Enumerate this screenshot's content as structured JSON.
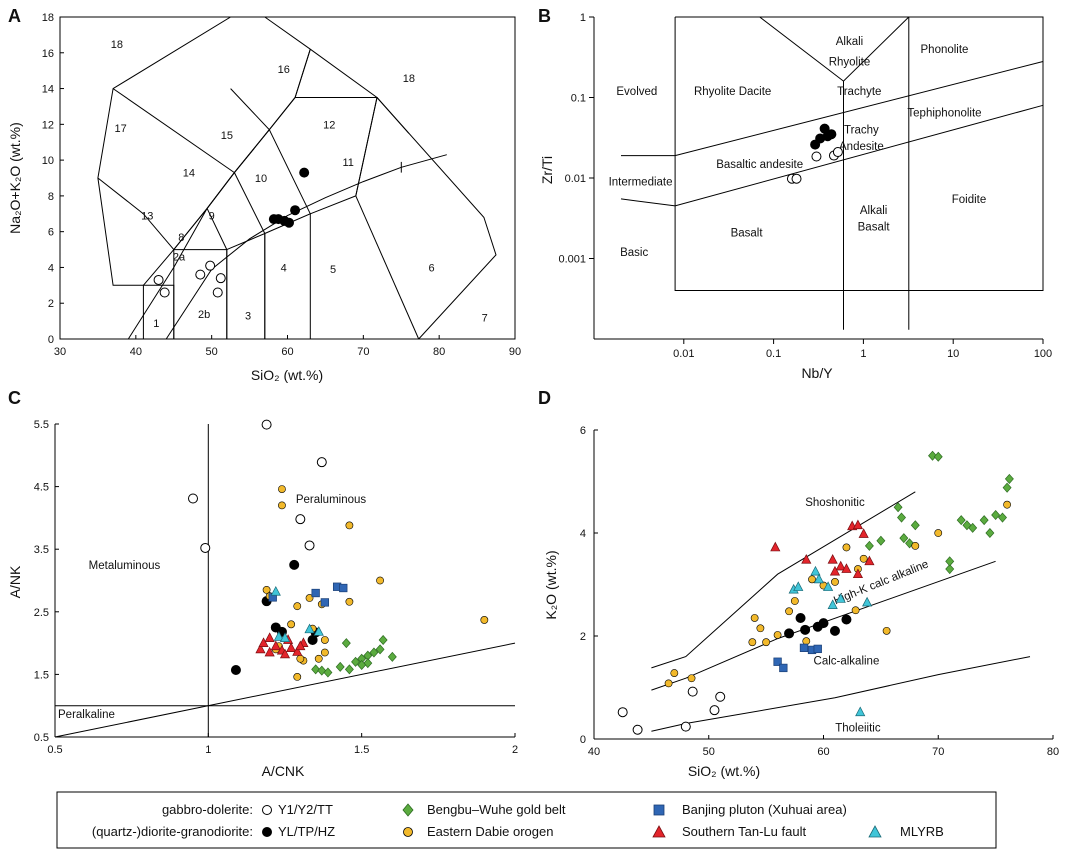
{
  "chart_data": [
    {
      "panel": "A",
      "type": "scatter",
      "xlabel": "SiO₂ (wt.%)",
      "ylabel": "Na₂O+K₂O  (wt.%)",
      "xlim": [
        30,
        90
      ],
      "ylim": [
        0,
        18
      ],
      "xticks": [
        "30",
        "40",
        "50",
        "60",
        "70",
        "80",
        "90"
      ],
      "yticks": [
        "0",
        "2",
        "4",
        "6",
        "8",
        "10",
        "12",
        "14",
        "16",
        "18"
      ],
      "field_labels": [
        {
          "text": "18",
          "x": 37.5,
          "y": 16.5
        },
        {
          "text": "17",
          "x": 38,
          "y": 11.8
        },
        {
          "text": "16",
          "x": 59.5,
          "y": 15.1
        },
        {
          "text": "18",
          "x": 76,
          "y": 14.6
        },
        {
          "text": "15",
          "x": 52,
          "y": 11.4
        },
        {
          "text": "12",
          "x": 65.5,
          "y": 12.0
        },
        {
          "text": "14",
          "x": 47,
          "y": 9.3
        },
        {
          "text": "10",
          "x": 56.5,
          "y": 9.0
        },
        {
          "text": "11",
          "x": 68,
          "y": 9.9
        },
        {
          "text": "13",
          "x": 41.5,
          "y": 6.9
        },
        {
          "text": "9",
          "x": 50,
          "y": 6.9
        },
        {
          "text": "8",
          "x": 46,
          "y": 5.7
        },
        {
          "text": "2a",
          "x": 45.7,
          "y": 4.6
        },
        {
          "text": "4",
          "x": 59.5,
          "y": 4.0
        },
        {
          "text": "5",
          "x": 66,
          "y": 3.9
        },
        {
          "text": "6",
          "x": 79,
          "y": 4.0
        },
        {
          "text": "1",
          "x": 42.7,
          "y": 0.9
        },
        {
          "text": "2b",
          "x": 49,
          "y": 1.4
        },
        {
          "text": "3",
          "x": 54.8,
          "y": 1.3
        },
        {
          "text": "7",
          "x": 86,
          "y": 1.2
        }
      ],
      "series": [
        {
          "name": "gabbro-dolerite (Y1/Y2/TT)",
          "marker": "open-circle",
          "x": [
            43.0,
            43.8,
            48.5,
            49.8,
            51.2,
            50.8
          ],
          "y": [
            3.3,
            2.6,
            3.6,
            4.1,
            3.4,
            2.6
          ]
        },
        {
          "name": "(quartz-)diorite-granodiorite (YL/TP/HZ)",
          "marker": "filled-circle",
          "x": [
            58.2,
            58.8,
            59.6,
            60.2,
            61.0,
            62.2
          ],
          "y": [
            6.7,
            6.7,
            6.6,
            6.5,
            7.2,
            9.3
          ]
        }
      ]
    },
    {
      "panel": "B",
      "type": "scatter",
      "xlabel": "Nb/Y",
      "ylabel": "Zr/Ti",
      "xscale": "log",
      "yscale": "log",
      "xlim": [
        0.001,
        100
      ],
      "ylim": [
        0.0001,
        1
      ],
      "xticks": [
        "0.01",
        "0.1",
        "1",
        "10",
        "100"
      ],
      "yticks": [
        "0.001",
        "0.01",
        "0.1",
        "1"
      ],
      "field_labels": [
        "Alkali",
        "Rhyolite",
        "Phonolite",
        "Evolved",
        "Rhyolite Dacite",
        "Trachyte",
        "Tephiphonolite",
        "Trachy",
        "Andesite",
        "Basaltic andesite",
        "Intermediate",
        "Foidite",
        "Alkali",
        "Basalt",
        "Basalt",
        "Basic"
      ],
      "series": [
        {
          "name": "gabbro-dolerite (Y1/Y2/TT)",
          "marker": "open-circle",
          "x": [
            0.16,
            0.18,
            0.3,
            0.47,
            0.52
          ],
          "y": [
            0.0098,
            0.0098,
            0.0185,
            0.019,
            0.021
          ]
        },
        {
          "name": "(quartz-)diorite-granodiorite (YL/TP/HZ)",
          "marker": "filled-circle",
          "x": [
            0.29,
            0.33,
            0.37,
            0.4,
            0.44
          ],
          "y": [
            0.026,
            0.031,
            0.041,
            0.033,
            0.035
          ]
        }
      ]
    },
    {
      "panel": "C",
      "type": "scatter",
      "xlabel": "A/CNK",
      "ylabel": "A/NK",
      "xlim": [
        0.5,
        2.0
      ],
      "ylim": [
        0.5,
        5.5
      ],
      "xticks": [
        "0.5",
        "1",
        "1.5",
        "2"
      ],
      "yticks": [
        "0.5",
        "1.5",
        "2.5",
        "3.5",
        "4.5",
        "5.5"
      ],
      "field_labels": [
        "Peraluminous",
        "Metaluminous",
        "Peralkaline"
      ],
      "series": [
        {
          "name": "gabbro-dolerite (Y1/Y2/TT)",
          "marker": "open-circle",
          "x": [
            1.19,
            1.37,
            0.95,
            0.99,
            1.3,
            1.33
          ],
          "y": [
            5.49,
            4.89,
            4.31,
            3.52,
            3.98,
            3.56
          ]
        },
        {
          "name": "(quartz-)diorite-granodiorite (YL/TP/HZ)",
          "marker": "filled-circle",
          "x": [
            1.09,
            1.28,
            1.22,
            1.24,
            1.35,
            1.34,
            1.19
          ],
          "y": [
            1.57,
            3.25,
            2.25,
            2.18,
            2.17,
            2.05,
            2.67
          ]
        },
        {
          "name": "Bengbu–Wuhe gold belt",
          "marker": "green-diamond",
          "x": [
            1.35,
            1.37,
            1.39,
            1.43,
            1.46,
            1.48,
            1.5,
            1.52,
            1.54,
            1.56,
            1.57,
            1.6,
            1.52,
            1.5,
            1.45
          ],
          "y": [
            1.58,
            1.56,
            1.53,
            1.62,
            1.58,
            1.7,
            1.75,
            1.8,
            1.85,
            1.9,
            2.05,
            1.78,
            1.68,
            1.65,
            2.0
          ]
        },
        {
          "name": "Eastern Dabie orogen",
          "marker": "yellow-circle",
          "x": [
            1.19,
            1.24,
            1.24,
            1.46,
            1.56,
            1.2,
            1.29,
            1.33,
            1.37,
            1.46,
            1.27,
            1.34,
            1.38,
            1.31,
            1.29,
            1.9,
            1.38,
            1.36,
            1.23,
            1.22,
            1.3
          ],
          "y": [
            2.85,
            4.46,
            4.2,
            3.88,
            3.0,
            2.75,
            2.59,
            2.72,
            2.62,
            2.66,
            2.3,
            2.23,
            2.05,
            1.72,
            1.46,
            2.37,
            1.85,
            1.75,
            1.95,
            1.9,
            1.75
          ]
        },
        {
          "name": "Southern Tan-Lu fault",
          "marker": "red-triangle",
          "x": [
            1.17,
            1.18,
            1.2,
            1.22,
            1.24,
            1.26,
            1.27,
            1.29,
            1.31,
            1.2,
            1.25,
            1.3
          ],
          "y": [
            1.9,
            2.0,
            1.85,
            1.95,
            1.88,
            2.05,
            1.92,
            1.86,
            2.0,
            2.08,
            1.82,
            1.95
          ]
        },
        {
          "name": "Banjing pluton (Xuhuai area)",
          "marker": "blue-square",
          "x": [
            1.21,
            1.35,
            1.38,
            1.42,
            1.44
          ],
          "y": [
            2.73,
            2.8,
            2.65,
            2.9,
            2.88
          ]
        },
        {
          "name": "MLYRB",
          "marker": "cyan-triangle",
          "x": [
            1.22,
            1.23,
            1.25,
            1.33,
            1.36
          ],
          "y": [
            2.82,
            2.1,
            2.08,
            2.22,
            2.18
          ]
        }
      ]
    },
    {
      "panel": "D",
      "type": "scatter",
      "xlabel": "SiO₂ (wt.%)",
      "ylabel": "K₂O (wt.%)",
      "xlim": [
        40,
        80
      ],
      "ylim": [
        0,
        6
      ],
      "xticks": [
        "40",
        "50",
        "60",
        "70",
        "80"
      ],
      "yticks": [
        "0",
        "2",
        "4",
        "6"
      ],
      "field_labels": [
        "Shoshonitic",
        "High-K calc alkaline",
        "Calc-alkaline",
        "Tholeiitic"
      ],
      "series": [
        {
          "name": "gabbro-dolerite (Y1/Y2/TT)",
          "marker": "open-circle",
          "x": [
            42.5,
            43.8,
            48.0,
            48.6,
            50.5,
            51.0
          ],
          "y": [
            0.52,
            0.18,
            0.24,
            0.92,
            0.56,
            0.82
          ]
        },
        {
          "name": "(quartz-)diorite-granodiorite (YL/TP/HZ)",
          "marker": "filled-circle",
          "x": [
            57.0,
            58.0,
            58.4,
            59.5,
            60.0,
            61.0,
            62.0
          ],
          "y": [
            2.05,
            2.35,
            2.12,
            2.18,
            2.25,
            2.1,
            2.32
          ]
        },
        {
          "name": "Bengbu–Wuhe gold belt",
          "marker": "green-diamond",
          "x": [
            64,
            65,
            66.5,
            67.0,
            68,
            69.5,
            70,
            71,
            72,
            73,
            74,
            75,
            76,
            76.2,
            75.6,
            74.5,
            72.5,
            71.0,
            66.8,
            67.5
          ],
          "y": [
            3.75,
            3.85,
            4.5,
            3.9,
            4.15,
            5.5,
            5.48,
            3.3,
            4.25,
            4.1,
            4.25,
            4.35,
            4.88,
            5.05,
            4.3,
            4.0,
            4.15,
            3.45,
            4.3,
            3.8
          ]
        },
        {
          "name": "Eastern Dabie orogen",
          "marker": "yellow-circle",
          "x": [
            46.5,
            47.0,
            48.5,
            54.0,
            53.8,
            55.0,
            54.5,
            57,
            56.0,
            57.5,
            59,
            60,
            61,
            62.0,
            63.0,
            63.5,
            68.0,
            70,
            76.0,
            65.5,
            62.8,
            58.5
          ],
          "y": [
            1.08,
            1.28,
            1.18,
            2.35,
            1.88,
            1.88,
            2.15,
            2.48,
            2.02,
            2.68,
            3.1,
            2.98,
            3.05,
            3.72,
            3.3,
            3.5,
            3.75,
            4.0,
            4.55,
            2.1,
            2.5,
            1.9
          ]
        },
        {
          "name": "Southern Tan-Lu fault",
          "marker": "red-triangle",
          "x": [
            55.8,
            58.5,
            60.8,
            61.5,
            62.5,
            63.0,
            63.5,
            64.0,
            61.0,
            62.0,
            63.0
          ],
          "y": [
            3.72,
            3.48,
            3.48,
            3.35,
            4.13,
            4.15,
            3.98,
            3.45,
            3.25,
            3.3,
            3.2
          ]
        },
        {
          "name": "Banjing pluton (Xuhuai area)",
          "marker": "blue-square",
          "x": [
            56.0,
            56.5,
            58.3,
            59.0,
            59.5
          ],
          "y": [
            1.5,
            1.38,
            1.77,
            1.73,
            1.75
          ]
        },
        {
          "name": "MLYRB",
          "marker": "cyan-triangle",
          "x": [
            57.4,
            57.8,
            59.3,
            59.6,
            60.4,
            60.8,
            61.5,
            63.8,
            63.2
          ],
          "y": [
            2.9,
            2.95,
            3.25,
            3.1,
            2.95,
            2.6,
            2.72,
            2.65,
            0.52
          ]
        }
      ]
    }
  ],
  "legend": {
    "group1_label": "gabbro-dolerite:",
    "group1_code": "Y1/Y2/TT",
    "group2_label": "(quartz-)diorite-granodiorite:",
    "group2_code": "YL/TP/HZ",
    "bengbu": "Bengbu–Wuhe gold belt",
    "dabie": "Eastern Dabie orogen",
    "banjing": "Banjing pluton (Xuhuai area)",
    "tanlu": "Southern Tan-Lu fault",
    "mlyrb": "MLYRB"
  },
  "colors": {
    "green": "#5bab3f",
    "yellow": "#f2b92b",
    "blue": "#2f66b4",
    "red": "#e3242b",
    "cyan": "#41c5d8"
  }
}
